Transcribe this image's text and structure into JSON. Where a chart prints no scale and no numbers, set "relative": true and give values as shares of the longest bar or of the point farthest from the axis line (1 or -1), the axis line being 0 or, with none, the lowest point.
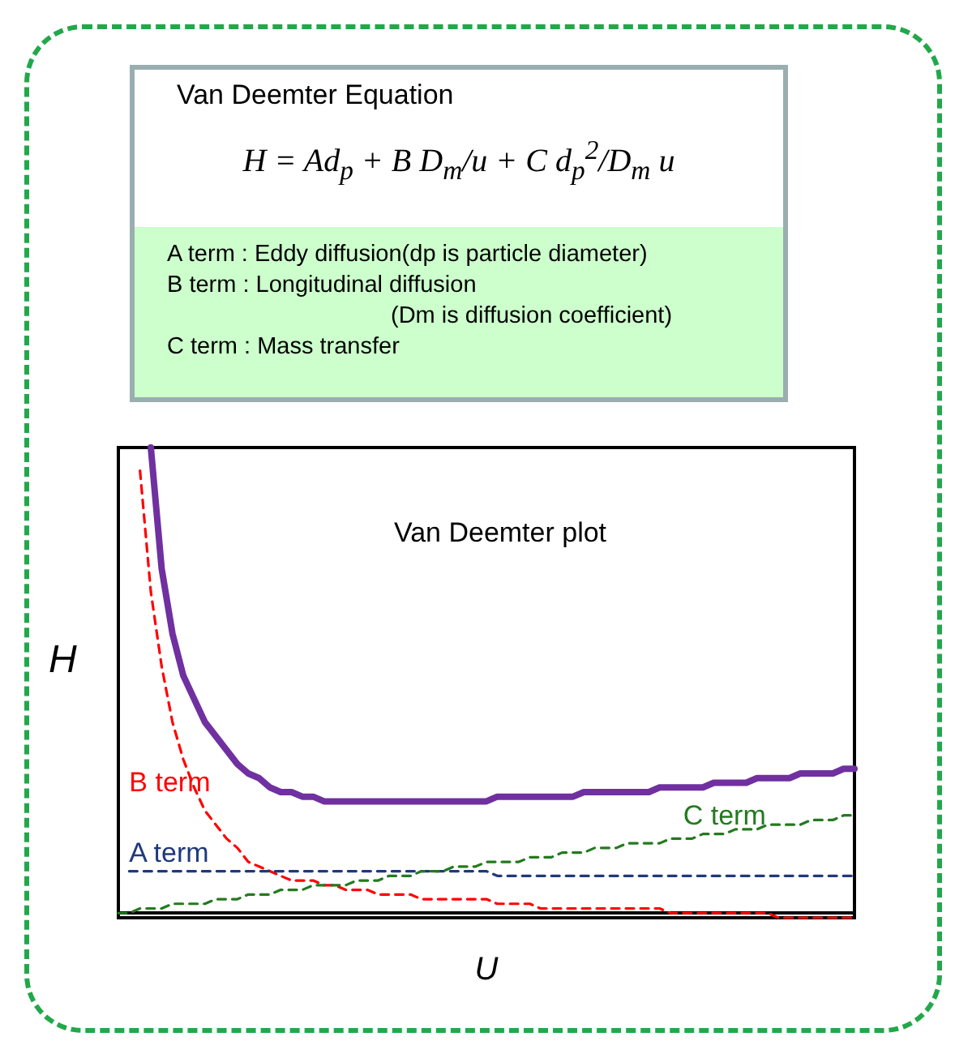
{
  "chart_data": {
    "type": "line",
    "relative": true,
    "title": "Van Deemter plot",
    "xlabel": "U",
    "ylabel": "H",
    "line_style": "dashed",
    "marker": "none",
    "grid": false,
    "legend": false,
    "annotations": [
      "Van Deemter Equation",
      "H = Ad$_{p}$ + B D$_{m}$/u + C d$_{p}$$^{2}$/D$_{m}$ u",
      "A term : Eddy diffusion(dp is particle diameter)",
      "B term : Longitudinal diffusion",
      "(Dm is diffusion coefficient)",
      "C term : Mass transfer"
    ],
    "categories": [
      null,
      null,
      null,
      null,
      null,
      null,
      null,
      null,
      null,
      null,
      null,
      null,
      null,
      null,
      null,
      null,
      null,
      null,
      null,
      null,
      null,
      null,
      null,
      null,
      null,
      null,
      null,
      null,
      null,
      null,
      null,
      null,
      null,
      null,
      null,
      null,
      null,
      null,
      null,
      null,
      null,
      null,
      null,
      null,
      null,
      null,
      null,
      null,
      null,
      null,
      null,
      null,
      null,
      null,
      null,
      null,
      null,
      null,
      null,
      null,
      null,
      null,
      null,
      null,
      null,
      null,
      null,
      null,
      null
    ],
    "series": [
      {
        "color": "#7030a0",
        "line_style": "solid",
        "values": [
          null,
          null,
          null,
          1.0,
          0.74,
          0.6,
          0.51,
          0.46,
          0.41,
          0.38,
          0.35,
          0.32,
          0.3,
          0.29,
          0.27,
          0.26,
          0.26,
          0.25,
          0.25,
          0.24,
          0.24,
          0.24,
          0.24,
          0.24,
          0.24,
          0.24,
          0.24,
          0.24,
          0.24,
          0.24,
          0.24,
          0.24,
          0.24,
          0.24,
          0.24,
          0.25,
          0.25,
          0.25,
          0.25,
          0.25,
          0.25,
          0.25,
          0.25,
          0.26,
          0.26,
          0.26,
          0.26,
          0.26,
          0.26,
          0.26,
          0.27,
          0.27,
          0.27,
          0.27,
          0.27,
          0.28,
          0.28,
          0.28,
          0.28,
          0.29,
          0.29,
          0.29,
          0.29,
          0.3,
          0.3,
          0.3,
          0.3,
          0.31,
          0.31
        ]
      },
      {
        "name": "B term",
        "color": "#ff0000",
        "values": [
          null,
          null,
          0.95,
          0.69,
          0.53,
          0.41,
          0.33,
          0.27,
          0.22,
          0.19,
          0.16,
          0.14,
          0.11,
          0.1,
          0.09,
          0.08,
          0.07,
          0.07,
          0.07,
          0.06,
          0.06,
          0.05,
          0.05,
          0.05,
          0.04,
          0.04,
          0.04,
          0.04,
          0.03,
          0.03,
          0.03,
          0.03,
          0.03,
          0.03,
          0.03,
          0.02,
          0.02,
          0.02,
          0.02,
          0.01,
          0.01,
          0.01,
          0.01,
          0.01,
          0.01,
          0.01,
          0.01,
          0.01,
          0.01,
          0.01,
          0.01,
          0.0,
          0.0,
          0.0,
          0.0,
          0.0,
          0.0,
          0.0,
          0.0,
          0.0,
          0.0,
          -0.01,
          -0.01,
          -0.01,
          -0.01,
          -0.01,
          -0.01,
          -0.01,
          -0.01
        ]
      },
      {
        "name": "A term",
        "color": "#1f3a7a",
        "values": [
          null,
          0.09,
          0.09,
          0.09,
          0.09,
          0.09,
          0.09,
          0.09,
          0.09,
          0.09,
          0.09,
          0.09,
          0.09,
          0.09,
          0.09,
          0.09,
          0.09,
          0.09,
          0.09,
          0.09,
          0.09,
          0.09,
          0.09,
          0.09,
          0.09,
          0.09,
          0.09,
          0.09,
          0.09,
          0.09,
          0.09,
          0.09,
          0.09,
          0.09,
          0.09,
          0.08,
          0.08,
          0.08,
          0.08,
          0.08,
          0.08,
          0.08,
          0.08,
          0.08,
          0.08,
          0.08,
          0.08,
          0.08,
          0.08,
          0.08,
          0.08,
          0.08,
          0.08,
          0.08,
          0.08,
          0.08,
          0.08,
          0.08,
          0.08,
          0.08,
          0.08,
          0.08,
          0.08,
          0.08,
          0.08,
          0.08,
          0.08,
          0.08,
          0.08
        ]
      },
      {
        "name": "C term",
        "color": "#237a1e",
        "values": [
          0.0,
          0.0,
          0.01,
          0.01,
          0.01,
          0.02,
          0.02,
          0.02,
          0.02,
          0.03,
          0.03,
          0.03,
          0.04,
          0.04,
          0.04,
          0.05,
          0.05,
          0.05,
          0.06,
          0.06,
          0.06,
          0.06,
          0.07,
          0.07,
          0.07,
          0.08,
          0.08,
          0.08,
          0.09,
          0.09,
          0.09,
          0.1,
          0.1,
          0.1,
          0.11,
          0.11,
          0.11,
          0.11,
          0.12,
          0.12,
          0.12,
          0.13,
          0.13,
          0.13,
          0.14,
          0.14,
          0.14,
          0.15,
          0.15,
          0.15,
          0.15,
          0.16,
          0.16,
          0.16,
          0.17,
          0.17,
          0.17,
          0.18,
          0.18,
          0.18,
          0.19,
          0.19,
          0.19,
          0.19,
          0.2,
          0.2,
          0.2,
          0.21,
          0.21
        ]
      }
    ]
  }
}
